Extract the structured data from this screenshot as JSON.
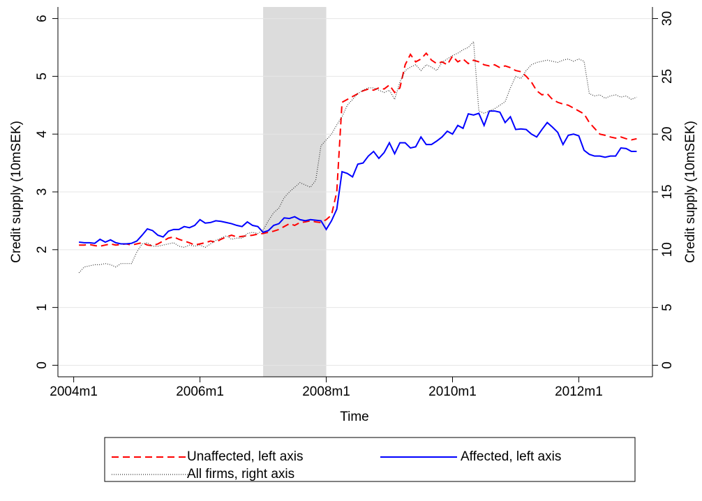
{
  "chart_data": {
    "type": "line",
    "x_label": "Time",
    "y_label": "Credit supply (10mSEK)",
    "y2_label": "Credit supply (10mSEK)",
    "x": [
      "2004m2",
      "2004m3",
      "2004m4",
      "2004m5",
      "2004m6",
      "2004m7",
      "2004m8",
      "2004m9",
      "2004m10",
      "2004m11",
      "2004m12",
      "2005m1",
      "2005m2",
      "2005m3",
      "2005m4",
      "2005m5",
      "2005m6",
      "2005m7",
      "2005m8",
      "2005m9",
      "2005m10",
      "2005m11",
      "2005m12",
      "2006m1",
      "2006m2",
      "2006m3",
      "2006m4",
      "2006m5",
      "2006m6",
      "2006m7",
      "2006m8",
      "2006m9",
      "2006m10",
      "2006m11",
      "2006m12",
      "2007m1",
      "2007m2",
      "2007m3",
      "2007m4",
      "2007m5",
      "2007m6",
      "2007m7",
      "2007m8",
      "2007m9",
      "2007m10",
      "2007m11",
      "2007m12",
      "2008m1",
      "2008m2",
      "2008m3",
      "2008m4",
      "2008m5",
      "2008m6",
      "2008m7",
      "2008m8",
      "2008m9",
      "2008m10",
      "2008m11",
      "2008m12",
      "2009m1",
      "2009m2",
      "2009m3",
      "2009m4",
      "2009m5",
      "2009m6",
      "2009m7",
      "2009m8",
      "2009m9",
      "2009m10",
      "2009m11",
      "2009m12",
      "2010m1",
      "2010m2",
      "2010m3",
      "2010m4",
      "2010m5",
      "2010m6",
      "2010m7",
      "2010m8",
      "2010m9",
      "2010m10",
      "2010m11",
      "2010m12",
      "2011m1",
      "2011m2",
      "2011m3",
      "2011m4",
      "2011m5",
      "2011m6",
      "2011m7",
      "2011m8",
      "2011m9",
      "2011m10",
      "2011m11",
      "2011m12",
      "2012m1",
      "2012m2",
      "2012m3",
      "2012m4",
      "2012m5",
      "2012m6",
      "2012m7",
      "2012m8",
      "2012m9",
      "2012m10",
      "2012m11",
      "2012m12"
    ],
    "series": [
      {
        "name": "Unaffected, left axis",
        "color": "#ff0000",
        "dash": "10,6",
        "axis": "y",
        "values": [
          2.08,
          2.08,
          2.09,
          2.07,
          2.06,
          2.08,
          2.1,
          2.08,
          2.09,
          2.1,
          2.08,
          2.1,
          2.12,
          2.08,
          2.07,
          2.1,
          2.15,
          2.2,
          2.22,
          2.18,
          2.15,
          2.12,
          2.08,
          2.1,
          2.12,
          2.15,
          2.13,
          2.18,
          2.22,
          2.25,
          2.22,
          2.23,
          2.24,
          2.25,
          2.27,
          2.28,
          2.3,
          2.32,
          2.35,
          2.4,
          2.45,
          2.42,
          2.47,
          2.48,
          2.5,
          2.48,
          2.47,
          2.52,
          2.6,
          3.0,
          4.55,
          4.6,
          4.65,
          4.7,
          4.75,
          4.78,
          4.76,
          4.8,
          4.78,
          4.85,
          4.72,
          4.8,
          5.2,
          5.38,
          5.25,
          5.3,
          5.4,
          5.28,
          5.22,
          5.25,
          5.2,
          5.35,
          5.25,
          5.3,
          5.22,
          5.28,
          5.25,
          5.2,
          5.18,
          5.2,
          5.15,
          5.18,
          5.15,
          5.1,
          5.08,
          5.0,
          4.9,
          4.75,
          4.68,
          4.7,
          4.6,
          4.55,
          4.52,
          4.5,
          4.45,
          4.4,
          4.35,
          4.2,
          4.1,
          4.0,
          3.98,
          3.95,
          3.93,
          3.95,
          3.92,
          3.9,
          3.92
        ]
      },
      {
        "name": "Affected, left axis",
        "color": "#0000ff",
        "dash": "none",
        "axis": "y",
        "values": [
          2.13,
          2.12,
          2.12,
          2.11,
          2.18,
          2.13,
          2.17,
          2.12,
          2.1,
          2.1,
          2.11,
          2.15,
          2.25,
          2.36,
          2.33,
          2.25,
          2.22,
          2.32,
          2.35,
          2.35,
          2.4,
          2.38,
          2.42,
          2.52,
          2.46,
          2.47,
          2.5,
          2.49,
          2.47,
          2.45,
          2.42,
          2.4,
          2.48,
          2.42,
          2.4,
          2.3,
          2.33,
          2.42,
          2.45,
          2.55,
          2.54,
          2.57,
          2.52,
          2.5,
          2.52,
          2.51,
          2.5,
          2.35,
          2.5,
          2.7,
          3.35,
          3.32,
          3.26,
          3.48,
          3.5,
          3.62,
          3.7,
          3.58,
          3.68,
          3.85,
          3.66,
          3.85,
          3.85,
          3.76,
          3.78,
          3.95,
          3.82,
          3.82,
          3.88,
          3.95,
          4.05,
          4.0,
          4.15,
          4.1,
          4.35,
          4.33,
          4.36,
          4.15,
          4.4,
          4.4,
          4.38,
          4.2,
          4.3,
          4.08,
          4.09,
          4.08,
          4.0,
          3.95,
          4.08,
          4.2,
          4.12,
          4.03,
          3.82,
          3.98,
          4.0,
          3.97,
          3.72,
          3.65,
          3.62,
          3.62,
          3.6,
          3.62,
          3.62,
          3.76,
          3.75,
          3.7,
          3.7
        ]
      },
      {
        "name": "All firms, right axis",
        "color": "#333333",
        "dash": "1,2",
        "axis": "y2",
        "values": [
          8.0,
          8.5,
          8.6,
          8.7,
          8.7,
          8.8,
          8.7,
          8.5,
          8.8,
          8.8,
          8.8,
          9.8,
          10.5,
          10.6,
          10.3,
          10.3,
          10.4,
          10.5,
          10.6,
          10.3,
          10.2,
          10.4,
          10.3,
          10.4,
          10.2,
          10.5,
          10.8,
          11.0,
          11.2,
          10.9,
          11.0,
          11.0,
          11.4,
          11.5,
          11.4,
          11.7,
          12.5,
          13.2,
          13.6,
          14.5,
          15.0,
          15.4,
          15.8,
          15.6,
          15.4,
          16.0,
          19.0,
          19.5,
          20.0,
          20.8,
          21.5,
          22.5,
          23.0,
          23.5,
          23.8,
          24.0,
          24.0,
          23.8,
          23.6,
          23.8,
          23.0,
          24.5,
          25.5,
          25.8,
          26.0,
          25.5,
          26.0,
          25.8,
          25.5,
          26.2,
          26.5,
          26.8,
          27.0,
          27.3,
          27.5,
          28.0,
          22.0,
          21.8,
          22.0,
          22.2,
          22.5,
          22.8,
          24.0,
          25.0,
          24.8,
          25.5,
          26.0,
          26.2,
          26.3,
          26.4,
          26.3,
          26.2,
          26.4,
          26.5,
          26.3,
          26.5,
          26.3,
          23.5,
          23.3,
          23.4,
          23.1,
          23.3,
          23.4,
          23.2,
          23.3,
          23.0,
          23.2
        ]
      }
    ],
    "xlim": [
      "2003m10",
      "2013m3"
    ],
    "xticks": [
      "2004m1",
      "2006m1",
      "2008m1",
      "2010m1",
      "2012m1"
    ],
    "ylim": [
      -0.2,
      6.2
    ],
    "yticks": [
      0,
      1,
      2,
      3,
      4,
      5,
      6
    ],
    "y2lim": [
      -1,
      31
    ],
    "y2ticks": [
      0,
      5,
      10,
      15,
      20,
      25,
      30
    ],
    "shaded_period": [
      "2007m1",
      "2008m1"
    ],
    "shade_color": "#dcdcdc",
    "grid": true,
    "legend": "bottom"
  }
}
